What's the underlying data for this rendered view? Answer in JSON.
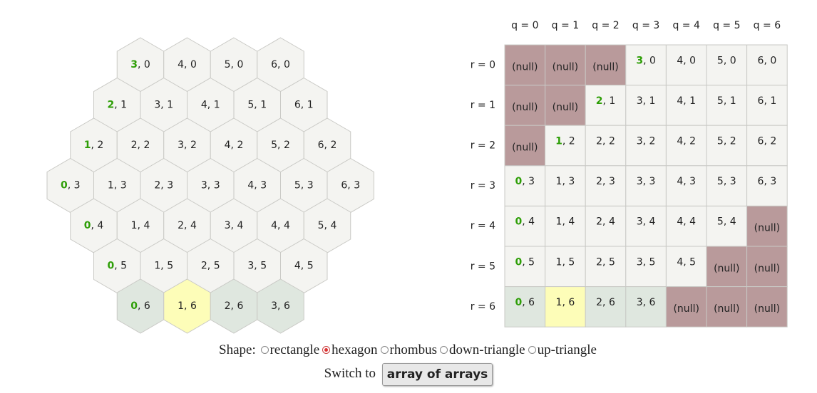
{
  "hex_map": {
    "rows": [
      {
        "r": 0,
        "cells": [
          {
            "q": 3,
            "hl": true
          },
          {
            "q": 4
          },
          {
            "q": 5
          },
          {
            "q": 6
          }
        ]
      },
      {
        "r": 1,
        "cells": [
          {
            "q": 2,
            "hl": true
          },
          {
            "q": 3
          },
          {
            "q": 4
          },
          {
            "q": 5
          },
          {
            "q": 6
          }
        ]
      },
      {
        "r": 2,
        "cells": [
          {
            "q": 1,
            "hl": true
          },
          {
            "q": 2
          },
          {
            "q": 3
          },
          {
            "q": 4
          },
          {
            "q": 5
          },
          {
            "q": 6
          }
        ]
      },
      {
        "r": 3,
        "cells": [
          {
            "q": 0,
            "hl": true
          },
          {
            "q": 1
          },
          {
            "q": 2
          },
          {
            "q": 3
          },
          {
            "q": 4
          },
          {
            "q": 5
          },
          {
            "q": 6
          }
        ]
      },
      {
        "r": 4,
        "cells": [
          {
            "q": 0,
            "hl": true
          },
          {
            "q": 1
          },
          {
            "q": 2
          },
          {
            "q": 3
          },
          {
            "q": 4
          },
          {
            "q": 5
          }
        ]
      },
      {
        "r": 5,
        "cells": [
          {
            "q": 0,
            "hl": true
          },
          {
            "q": 1
          },
          {
            "q": 2
          },
          {
            "q": 3
          },
          {
            "q": 4
          }
        ]
      },
      {
        "r": 6,
        "cells": [
          {
            "q": 0,
            "hl": true,
            "fill": "green"
          },
          {
            "q": 1,
            "fill": "yellow"
          },
          {
            "q": 2,
            "fill": "green"
          },
          {
            "q": 3,
            "fill": "green"
          }
        ]
      }
    ]
  },
  "array_grid": {
    "col_headers": [
      "q = 0",
      "q = 1",
      "q = 2",
      "q = 3",
      "q = 4",
      "q = 5",
      "q = 6"
    ],
    "row_headers": [
      "r = 0",
      "r = 1",
      "r = 2",
      "r = 3",
      "r = 4",
      "r = 5",
      "r = 6"
    ],
    "null_label": "(null)",
    "rows": [
      [
        null,
        null,
        null,
        {
          "q": 3,
          "r": 0,
          "hl": true
        },
        {
          "q": 4,
          "r": 0
        },
        {
          "q": 5,
          "r": 0
        },
        {
          "q": 6,
          "r": 0
        }
      ],
      [
        null,
        null,
        {
          "q": 2,
          "r": 1,
          "hl": true
        },
        {
          "q": 3,
          "r": 1
        },
        {
          "q": 4,
          "r": 1
        },
        {
          "q": 5,
          "r": 1
        },
        {
          "q": 6,
          "r": 1
        }
      ],
      [
        null,
        {
          "q": 1,
          "r": 2,
          "hl": true
        },
        {
          "q": 2,
          "r": 2
        },
        {
          "q": 3,
          "r": 2
        },
        {
          "q": 4,
          "r": 2
        },
        {
          "q": 5,
          "r": 2
        },
        {
          "q": 6,
          "r": 2
        }
      ],
      [
        {
          "q": 0,
          "r": 3,
          "hl": true
        },
        {
          "q": 1,
          "r": 3
        },
        {
          "q": 2,
          "r": 3
        },
        {
          "q": 3,
          "r": 3
        },
        {
          "q": 4,
          "r": 3
        },
        {
          "q": 5,
          "r": 3
        },
        {
          "q": 6,
          "r": 3
        }
      ],
      [
        {
          "q": 0,
          "r": 4,
          "hl": true
        },
        {
          "q": 1,
          "r": 4
        },
        {
          "q": 2,
          "r": 4
        },
        {
          "q": 3,
          "r": 4
        },
        {
          "q": 4,
          "r": 4
        },
        {
          "q": 5,
          "r": 4
        },
        null
      ],
      [
        {
          "q": 0,
          "r": 5,
          "hl": true
        },
        {
          "q": 1,
          "r": 5
        },
        {
          "q": 2,
          "r": 5
        },
        {
          "q": 3,
          "r": 5
        },
        {
          "q": 4,
          "r": 5
        },
        null,
        null
      ],
      [
        {
          "q": 0,
          "r": 6,
          "hl": true,
          "fill": "green"
        },
        {
          "q": 1,
          "r": 6,
          "fill": "yellow"
        },
        {
          "q": 2,
          "r": 6,
          "fill": "green"
        },
        {
          "q": 3,
          "r": 6,
          "fill": "green"
        },
        null,
        null,
        null
      ]
    ]
  },
  "colors": {
    "cell": "#f4f4f1",
    "cell_green": "#dfe7df",
    "cell_yellow": "#fdfdb8",
    "null_cell": "#b99a9b",
    "border": "#c9c9c5",
    "highlight_text": "#2e9e07"
  },
  "controls": {
    "shape_label": "Shape:",
    "options": [
      {
        "label": "rectangle",
        "checked": false
      },
      {
        "label": "hexagon",
        "checked": true
      },
      {
        "label": "rhombus",
        "checked": false
      },
      {
        "label": "down-triangle",
        "checked": false
      },
      {
        "label": "up-triangle",
        "checked": false
      }
    ],
    "switch_prefix": "Switch to",
    "switch_button": "array of arrays"
  }
}
